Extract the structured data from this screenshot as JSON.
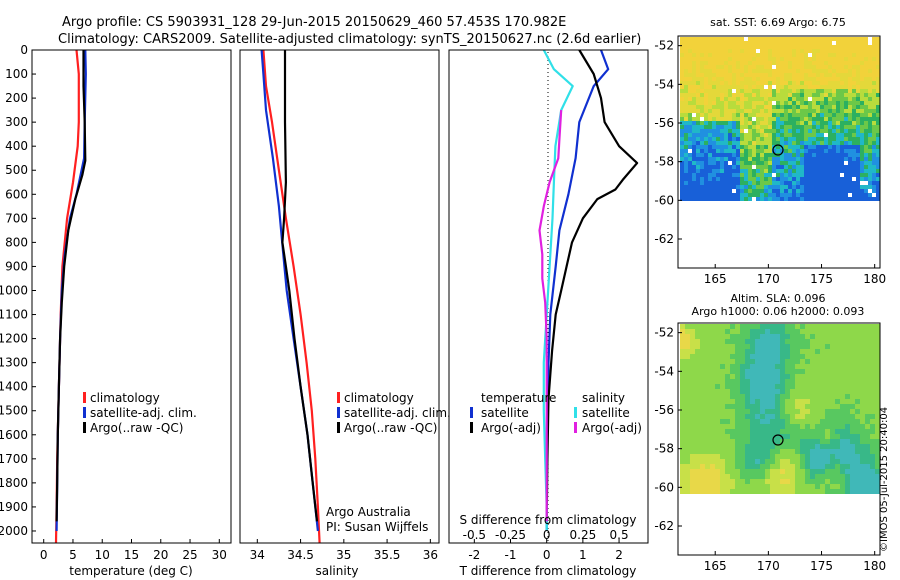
{
  "header": {
    "line1": "Argo profile: CS 5903931_128 29-Jun-2015 20150629_460 57.453S 170.982E",
    "line2": "Climatology: CARS2009. Satellite-adjusted climatology: synTS_20150627.nc (2.6d earlier)"
  },
  "colors": {
    "climatology": "#ff2020",
    "satellite": "#1030d0",
    "argo": "#000000",
    "cyan": "#30e0e8",
    "magenta": "#e020e0"
  },
  "depth_ticks": [
    "0",
    "100",
    "200",
    "300",
    "400",
    "500",
    "600",
    "700",
    "800",
    "900",
    "1000",
    "1100",
    "1200",
    "1300",
    "1400",
    "1500",
    "1600",
    "1700",
    "1800",
    "1900",
    "2000"
  ],
  "panel_temp": {
    "xlabel": "temperature (deg C)",
    "xticks": [
      "0",
      "5",
      "10",
      "15",
      "20",
      "25",
      "30"
    ],
    "legend": [
      "climatology",
      "satellite-adj. clim.",
      "Argo(..raw -QC)"
    ]
  },
  "panel_sal": {
    "xlabel": "salinity",
    "xticks": [
      "34",
      "34.5",
      "35",
      "35.5",
      "36"
    ],
    "legend": [
      "climatology",
      "satellite-adj. clim.",
      "Argo(..raw -QC)"
    ],
    "credit1": "Argo Australia",
    "credit2": "PI: Susan Wijffels"
  },
  "panel_diff": {
    "xlabel": "T difference from climatology",
    "s_label": "S difference from climatology",
    "t_ticks": [
      "-2",
      "-1",
      "0",
      "1",
      "2"
    ],
    "s_ticks": [
      "-0.5",
      "-0.25",
      "0",
      "0.25",
      "0.5"
    ],
    "legend_temp_title": "temperature",
    "legend_sal_title": "salinity",
    "legend_temp": [
      "satellite",
      "Argo(-adj)"
    ],
    "legend_sal": [
      "satellite",
      "Argo(-adj)"
    ]
  },
  "map_sst": {
    "title": "sat. SST: 6.69 Argo: 6.75",
    "yticks": [
      "-52",
      "-54",
      "-56",
      "-58",
      "-60",
      "-62"
    ],
    "xticks": [
      "165",
      "170",
      "175",
      "180"
    ]
  },
  "map_sla": {
    "title1": "Altim. SLA: 0.096",
    "title2": "Argo h1000: 0.06 h2000: 0.093",
    "yticks": [
      "-52",
      "-54",
      "-56",
      "-58",
      "-60",
      "-62"
    ],
    "xticks": [
      "165",
      "170",
      "175",
      "180"
    ]
  },
  "footer": {
    "stamp": "©IMOS 05-Jul-2015 20:40:04"
  },
  "chart_data": [
    {
      "type": "line",
      "xlabel": "temperature (deg C)",
      "xlim": [
        -2,
        32
      ],
      "ylim": [
        2050,
        0
      ],
      "series": [
        {
          "name": "climatology",
          "color": "#ff2020",
          "points": [
            [
              5.6,
              0
            ],
            [
              6.0,
              100
            ],
            [
              6.0,
              300
            ],
            [
              5.8,
              400
            ],
            [
              5.0,
              550
            ],
            [
              4.0,
              700
            ],
            [
              3.2,
              900
            ],
            [
              2.9,
              1100
            ],
            [
              2.7,
              1300
            ],
            [
              2.5,
              1500
            ],
            [
              2.3,
              1700
            ],
            [
              2.2,
              1900
            ],
            [
              2.1,
              2050
            ]
          ]
        },
        {
          "name": "satellite-adj. clim.",
          "color": "#1030d0",
          "points": [
            [
              7.1,
              0
            ],
            [
              7.2,
              100
            ],
            [
              7.0,
              300
            ],
            [
              6.9,
              450
            ],
            [
              5.6,
              600
            ],
            [
              4.5,
              700
            ],
            [
              3.6,
              850
            ],
            [
              3.1,
              1000
            ],
            [
              2.8,
              1200
            ],
            [
              2.6,
              1400
            ],
            [
              2.4,
              1600
            ],
            [
              2.3,
              1800
            ],
            [
              2.2,
              2000
            ]
          ]
        },
        {
          "name": "Argo(..raw -QC)",
          "color": "#000000",
          "points": [
            [
              6.8,
              0
            ],
            [
              6.8,
              150
            ],
            [
              7.0,
              300
            ],
            [
              7.1,
              460
            ],
            [
              6.6,
              520
            ],
            [
              5.4,
              620
            ],
            [
              4.2,
              750
            ],
            [
              3.5,
              900
            ],
            [
              3.1,
              1050
            ],
            [
              2.8,
              1200
            ],
            [
              2.6,
              1400
            ],
            [
              2.4,
              1600
            ],
            [
              2.3,
              1800
            ],
            [
              2.2,
              1960
            ]
          ]
        }
      ]
    },
    {
      "type": "line",
      "xlabel": "salinity",
      "xlim": [
        33.8,
        36.1
      ],
      "ylim": [
        2050,
        0
      ],
      "series": [
        {
          "name": "climatology",
          "color": "#ff2020",
          "points": [
            [
              34.07,
              0
            ],
            [
              34.1,
              150
            ],
            [
              34.17,
              300
            ],
            [
              34.25,
              500
            ],
            [
              34.33,
              700
            ],
            [
              34.42,
              900
            ],
            [
              34.5,
              1100
            ],
            [
              34.57,
              1300
            ],
            [
              34.63,
              1500
            ],
            [
              34.67,
              1700
            ],
            [
              34.7,
              1900
            ],
            [
              34.72,
              2050
            ]
          ]
        },
        {
          "name": "satellite-adj. clim.",
          "color": "#1030d0",
          "points": [
            [
              34.05,
              0
            ],
            [
              34.07,
              100
            ],
            [
              34.1,
              250
            ],
            [
              34.18,
              450
            ],
            [
              34.25,
              650
            ],
            [
              34.3,
              850
            ],
            [
              34.34,
              1000
            ],
            [
              34.42,
              1200
            ],
            [
              34.5,
              1400
            ],
            [
              34.58,
              1600
            ],
            [
              34.64,
              1800
            ],
            [
              34.7,
              2000
            ]
          ]
        },
        {
          "name": "Argo(..raw -QC)",
          "color": "#000000",
          "points": [
            [
              34.32,
              0
            ],
            [
              34.32,
              300
            ],
            [
              34.33,
              550
            ],
            [
              34.31,
              700
            ],
            [
              34.29,
              800
            ],
            [
              34.33,
              900
            ],
            [
              34.37,
              1000
            ],
            [
              34.43,
              1200
            ],
            [
              34.5,
              1400
            ],
            [
              34.58,
              1600
            ],
            [
              34.64,
              1800
            ],
            [
              34.69,
              1960
            ]
          ]
        }
      ]
    },
    {
      "type": "line",
      "xlabel": "T difference from climatology",
      "s_xlabel": "S difference from climatology",
      "xlim": [
        -2.7,
        2.8
      ],
      "s_xlim": [
        -0.675,
        0.7
      ],
      "ylim": [
        2050,
        0
      ],
      "series": [
        {
          "name": "satellite",
          "group": "temperature",
          "axis": "T",
          "color": "#1030d0",
          "points": [
            [
              1.5,
              0
            ],
            [
              1.7,
              80
            ],
            [
              1.3,
              150
            ],
            [
              0.9,
              300
            ],
            [
              0.8,
              450
            ],
            [
              0.6,
              600
            ],
            [
              0.35,
              750
            ],
            [
              0.25,
              900
            ],
            [
              0.1,
              1100
            ],
            [
              0.05,
              1300
            ],
            [
              0.02,
              1500
            ],
            [
              0.0,
              1700
            ],
            [
              0.0,
              1900
            ],
            [
              0.0,
              2000
            ]
          ]
        },
        {
          "name": "Argo(-adj)",
          "group": "temperature",
          "axis": "T",
          "color": "#000000",
          "points": [
            [
              0.9,
              0
            ],
            [
              1.3,
              100
            ],
            [
              1.5,
              200
            ],
            [
              1.6,
              300
            ],
            [
              2.0,
              400
            ],
            [
              2.5,
              470
            ],
            [
              2.1,
              540
            ],
            [
              1.9,
              580
            ],
            [
              1.4,
              620
            ],
            [
              1.0,
              700
            ],
            [
              0.7,
              800
            ],
            [
              0.55,
              900
            ],
            [
              0.4,
              1000
            ],
            [
              0.25,
              1100
            ],
            [
              0.15,
              1250
            ],
            [
              0.05,
              1450
            ],
            [
              0.02,
              1700
            ],
            [
              0.0,
              1960
            ]
          ]
        },
        {
          "name": "satellite",
          "group": "salinity",
          "axis": "S",
          "color": "#30e0e8",
          "points": [
            [
              -0.02,
              0
            ],
            [
              0.05,
              80
            ],
            [
              0.18,
              150
            ],
            [
              0.1,
              250
            ],
            [
              0.06,
              400
            ],
            [
              0.05,
              550
            ],
            [
              0.04,
              700
            ],
            [
              0.02,
              900
            ],
            [
              0.0,
              1100
            ],
            [
              -0.02,
              1300
            ],
            [
              -0.02,
              1500
            ],
            [
              -0.01,
              1700
            ],
            [
              0.0,
              1900
            ],
            [
              0.0,
              2000
            ]
          ]
        },
        {
          "name": "Argo(-adj)",
          "group": "salinity",
          "axis": "S",
          "color": "#e020e0",
          "points": [
            [
              0.1,
              250
            ],
            [
              0.09,
              350
            ],
            [
              0.08,
              450
            ],
            [
              0.02,
              550
            ],
            [
              -0.02,
              650
            ],
            [
              -0.05,
              750
            ],
            [
              -0.03,
              850
            ],
            [
              -0.03,
              950
            ],
            [
              -0.01,
              1050
            ],
            [
              0.0,
              1200
            ],
            [
              0.0,
              1400
            ],
            [
              0.0,
              1600
            ],
            [
              0.0,
              1800
            ],
            [
              0.0,
              1960
            ]
          ]
        }
      ]
    },
    {
      "type": "heatmap",
      "title": "sat. SST: 6.69 Argo: 6.75",
      "xlim": [
        161.5,
        180.5
      ],
      "ylim": [
        -63.5,
        -51.5
      ],
      "float_position": [
        170.98,
        -57.45
      ]
    },
    {
      "type": "heatmap",
      "title": "Altim. SLA: 0.096",
      "subtitle": "Argo h1000: 0.06 h2000: 0.093",
      "xlim": [
        161.5,
        180.5
      ],
      "ylim": [
        -63.5,
        -51.5
      ],
      "float_position": [
        170.98,
        -57.45
      ]
    }
  ]
}
